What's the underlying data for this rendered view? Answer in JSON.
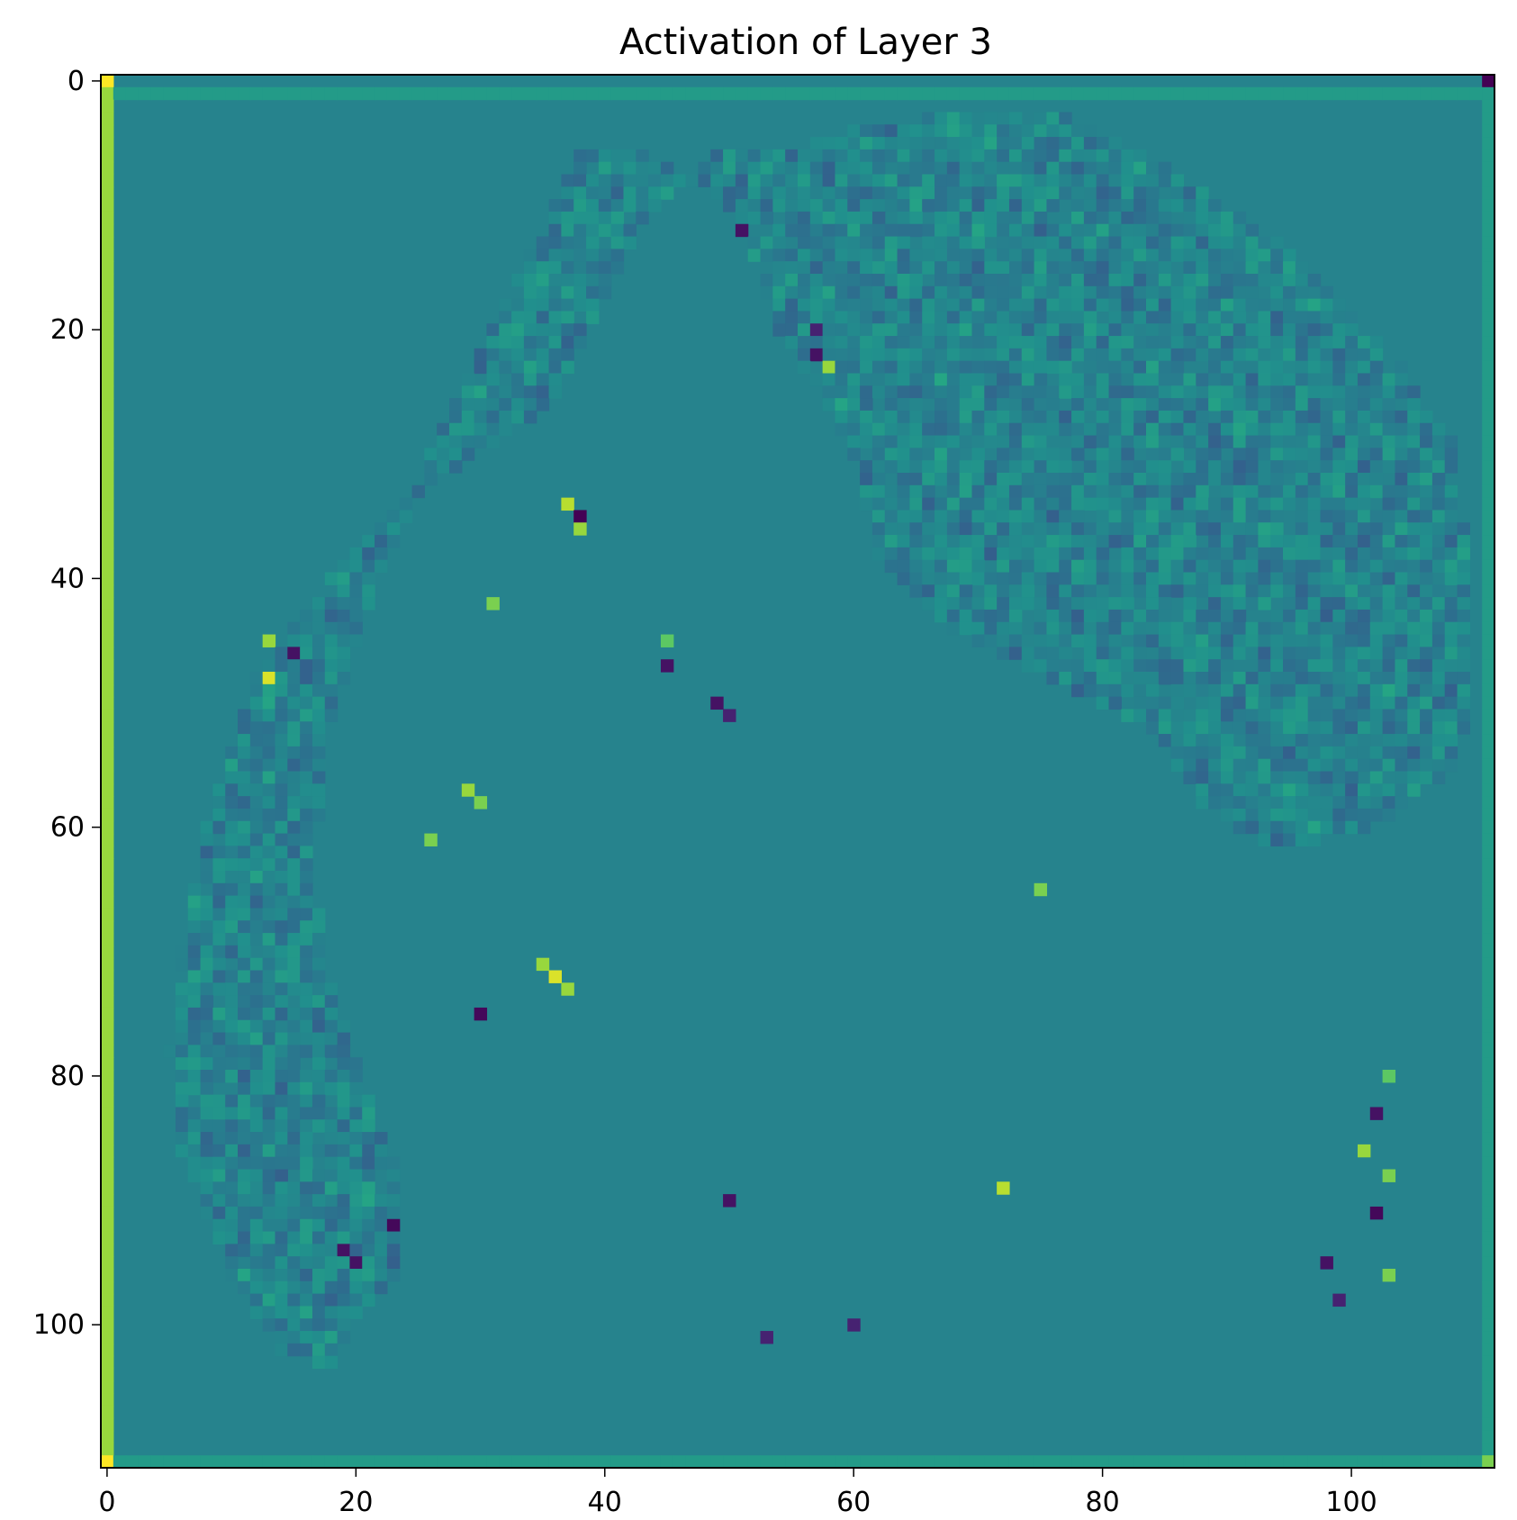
{
  "chart_data": {
    "type": "heatmap",
    "title": "Activation of Layer 3",
    "xlabel": "",
    "ylabel": "",
    "image_shape": [
      112,
      112
    ],
    "xlim": [
      -0.5,
      111.5
    ],
    "ylim": [
      111.5,
      -0.5
    ],
    "y_axis_inverted": true,
    "x_ticks": [
      0,
      20,
      40,
      60,
      80,
      100
    ],
    "y_ticks": [
      0,
      20,
      40,
      60,
      80,
      100
    ],
    "x_tick_labels": [
      "0",
      "20",
      "40",
      "60",
      "80",
      "100"
    ],
    "y_tick_labels": [
      "0",
      "20",
      "40",
      "60",
      "80",
      "100"
    ],
    "colormap": "viridis",
    "grid": false,
    "legend": "none",
    "colorbar": false,
    "colors": {
      "background_value_color": "#46888a",
      "border_left_color": "#c0de3a",
      "corner_top_right_color": "#440154",
      "corner_yellow_color": "#fde725",
      "frame_color": "#000000"
    },
    "features": {
      "background_level": 0.45,
      "left_edge_column": 0,
      "left_edge_level": 0.85,
      "top_row": 1,
      "bottom_row": 111,
      "right_column": 111,
      "edge_row_level": 0.55,
      "corners": [
        {
          "row": 0,
          "col": 0,
          "level": 1.0
        },
        {
          "row": 111,
          "col": 0,
          "level": 1.0
        },
        {
          "row": 0,
          "col": 111,
          "level": 0.0
        },
        {
          "row": 111,
          "col": 111,
          "level": 0.8
        }
      ],
      "blob_boundary": [
        [
          6,
          70
        ],
        [
          8,
          60
        ],
        [
          12,
          48
        ],
        [
          18,
          40
        ],
        [
          24,
          34
        ],
        [
          30,
          30
        ],
        [
          36,
          26
        ],
        [
          43,
          12
        ],
        [
          48,
          6
        ],
        [
          54,
          6
        ],
        [
          60,
          4
        ],
        [
          66,
          3
        ],
        [
          72,
          2
        ],
        [
          78,
          3
        ],
        [
          84,
          6
        ],
        [
          90,
          10
        ],
        [
          96,
          14
        ],
        [
          100,
          18
        ],
        [
          104,
          22
        ],
        [
          106,
          26
        ],
        [
          108,
          28
        ],
        [
          109,
          35
        ],
        [
          110,
          42
        ],
        [
          110,
          50
        ],
        [
          108,
          56
        ],
        [
          102,
          60
        ],
        [
          94,
          62
        ],
        [
          88,
          58
        ],
        [
          84,
          52
        ],
        [
          76,
          48
        ],
        [
          68,
          44
        ],
        [
          62,
          38
        ],
        [
          60,
          30
        ],
        [
          58,
          26
        ],
        [
          54,
          20
        ],
        [
          52,
          14
        ],
        [
          50,
          10
        ],
        [
          44,
          6
        ],
        [
          38,
          6
        ],
        [
          36,
          10
        ],
        [
          34,
          14
        ],
        [
          32,
          18
        ],
        [
          30,
          22
        ],
        [
          28,
          26
        ],
        [
          26,
          30
        ],
        [
          24,
          36
        ],
        [
          22,
          40
        ],
        [
          20,
          46
        ],
        [
          18,
          52
        ],
        [
          17,
          60
        ],
        [
          17,
          66
        ],
        [
          18,
          72
        ],
        [
          20,
          78
        ],
        [
          22,
          84
        ],
        [
          24,
          88
        ],
        [
          24,
          96
        ],
        [
          20,
          100
        ],
        [
          18,
          104
        ],
        [
          14,
          102
        ],
        [
          10,
          96
        ],
        [
          6,
          86
        ],
        [
          5,
          78
        ]
      ],
      "strong_spots": [
        {
          "row": 34,
          "col": 37,
          "level": 0.9
        },
        {
          "row": 35,
          "col": 38,
          "level": 0.0
        },
        {
          "row": 36,
          "col": 38,
          "level": 0.85
        },
        {
          "row": 42,
          "col": 31,
          "level": 0.8
        },
        {
          "row": 45,
          "col": 13,
          "level": 0.85
        },
        {
          "row": 48,
          "col": 13,
          "level": 0.95
        },
        {
          "row": 46,
          "col": 15,
          "level": 0.05
        },
        {
          "row": 57,
          "col": 29,
          "level": 0.85
        },
        {
          "row": 58,
          "col": 30,
          "level": 0.8
        },
        {
          "row": 61,
          "col": 26,
          "level": 0.8
        },
        {
          "row": 71,
          "col": 35,
          "level": 0.85
        },
        {
          "row": 72,
          "col": 36,
          "level": 0.95
        },
        {
          "row": 73,
          "col": 37,
          "level": 0.85
        },
        {
          "row": 75,
          "col": 30,
          "level": 0.02
        },
        {
          "row": 92,
          "col": 23,
          "level": 0.02
        },
        {
          "row": 94,
          "col": 19,
          "level": 0.05
        },
        {
          "row": 95,
          "col": 20,
          "level": 0.05
        },
        {
          "row": 90,
          "col": 50,
          "level": 0.05
        },
        {
          "row": 89,
          "col": 72,
          "level": 0.9
        },
        {
          "row": 65,
          "col": 75,
          "level": 0.8
        },
        {
          "row": 22,
          "col": 57,
          "level": 0.05
        },
        {
          "row": 23,
          "col": 58,
          "level": 0.85
        },
        {
          "row": 20,
          "col": 57,
          "level": 0.1
        },
        {
          "row": 12,
          "col": 51,
          "level": 0.05
        },
        {
          "row": 50,
          "col": 49,
          "level": 0.05
        },
        {
          "row": 51,
          "col": 50,
          "level": 0.1
        },
        {
          "row": 47,
          "col": 45,
          "level": 0.05
        },
        {
          "row": 45,
          "col": 45,
          "level": 0.75
        },
        {
          "row": 86,
          "col": 101,
          "level": 0.85
        },
        {
          "row": 88,
          "col": 103,
          "level": 0.8
        },
        {
          "row": 91,
          "col": 102,
          "level": 0.02
        },
        {
          "row": 95,
          "col": 98,
          "level": 0.05
        },
        {
          "row": 96,
          "col": 103,
          "level": 0.8
        },
        {
          "row": 98,
          "col": 99,
          "level": 0.1
        },
        {
          "row": 83,
          "col": 102,
          "level": 0.05
        },
        {
          "row": 80,
          "col": 103,
          "level": 0.75
        },
        {
          "row": 101,
          "col": 53,
          "level": 0.1
        },
        {
          "row": 100,
          "col": 60,
          "level": 0.1
        }
      ]
    }
  }
}
